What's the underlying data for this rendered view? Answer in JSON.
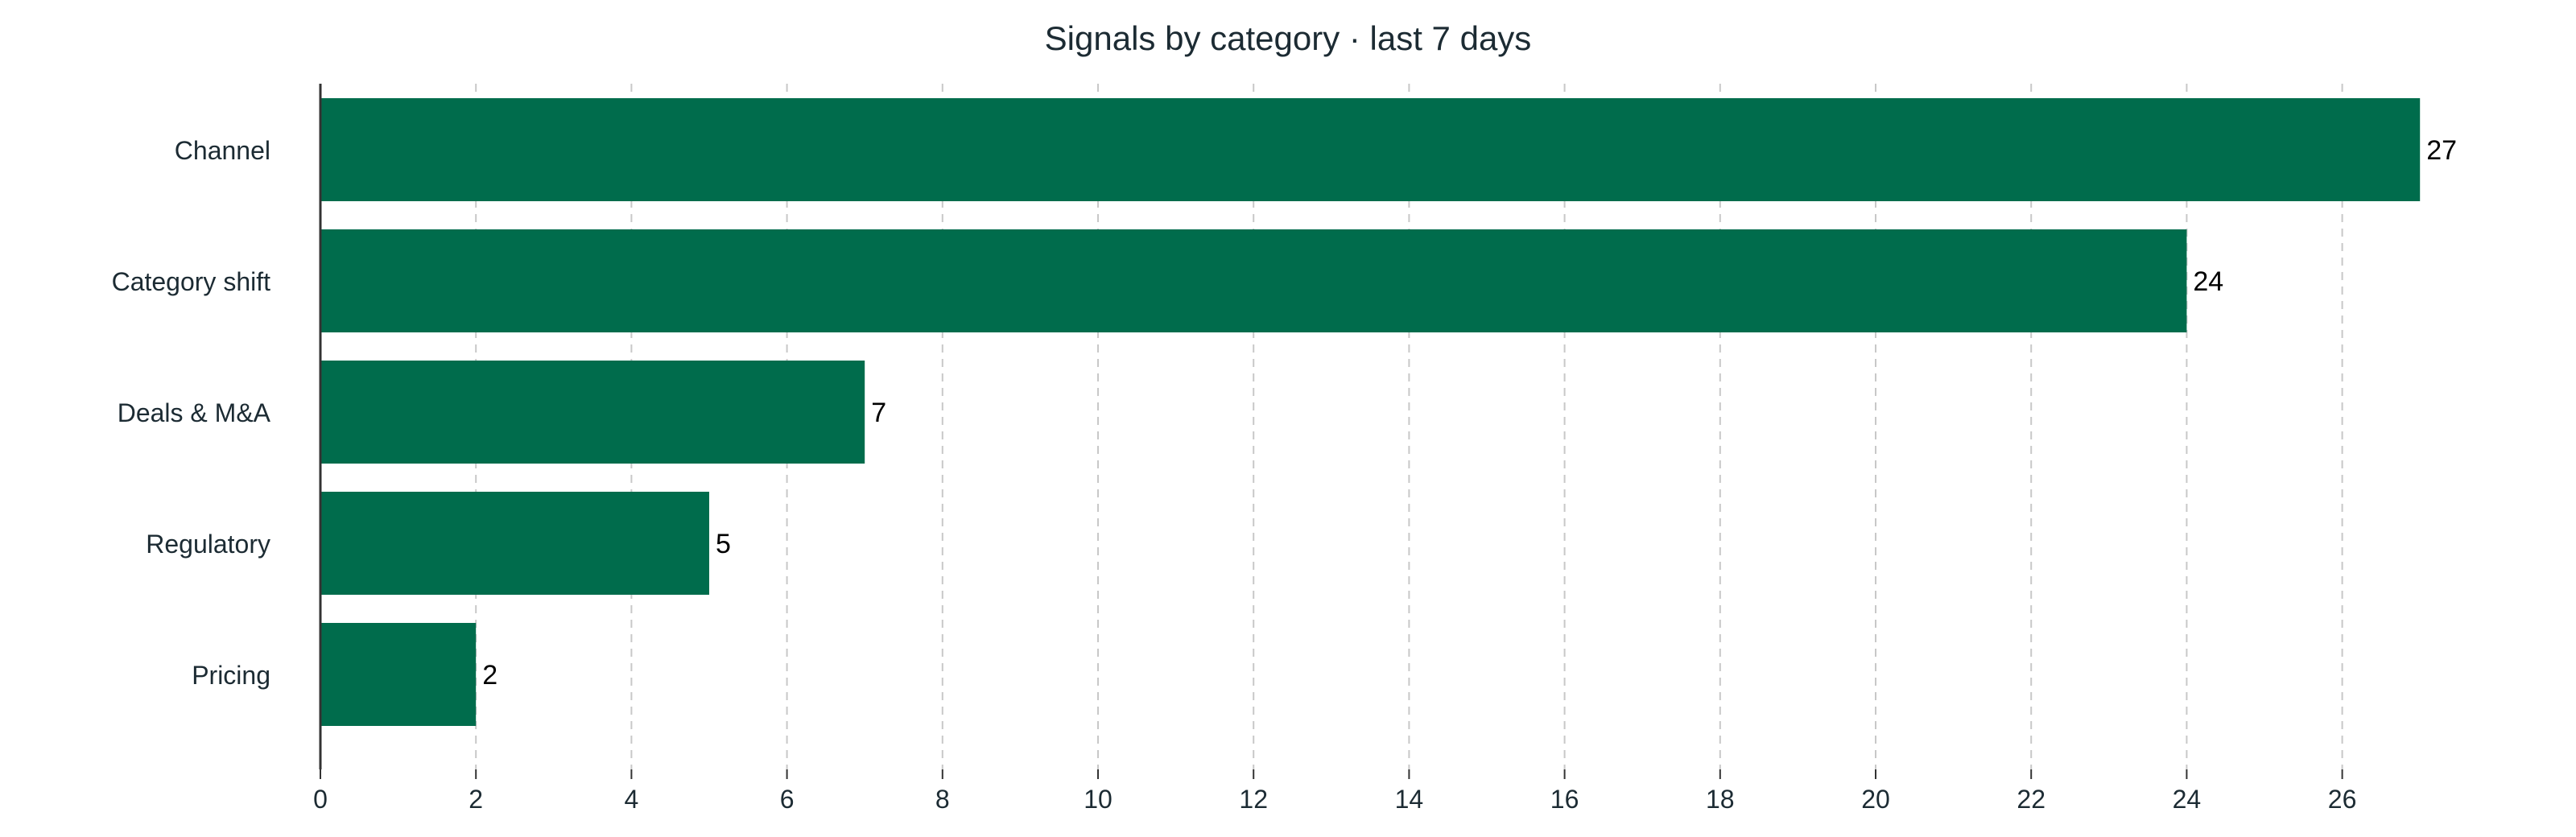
{
  "colors": {
    "bar": "#006c4c",
    "axis": "#333333",
    "grid": "#c8c8c8",
    "text": "#1c2b33",
    "label": "#000000"
  },
  "chart_data": {
    "type": "bar",
    "orientation": "horizontal",
    "title": "Signals by category · last 7 days",
    "xlabel": "",
    "ylabel": "",
    "categories": [
      "Channel",
      "Category shift",
      "Deals & M&A",
      "Regulatory",
      "Pricing"
    ],
    "values": [
      27,
      24,
      7,
      5,
      2
    ],
    "xlim": [
      0,
      28
    ],
    "xticks": [
      0,
      2,
      4,
      6,
      8,
      10,
      12,
      14,
      16,
      18,
      20,
      22,
      24,
      26
    ],
    "grid": "vertical-dashed",
    "legend": "none",
    "data_labels": true
  }
}
